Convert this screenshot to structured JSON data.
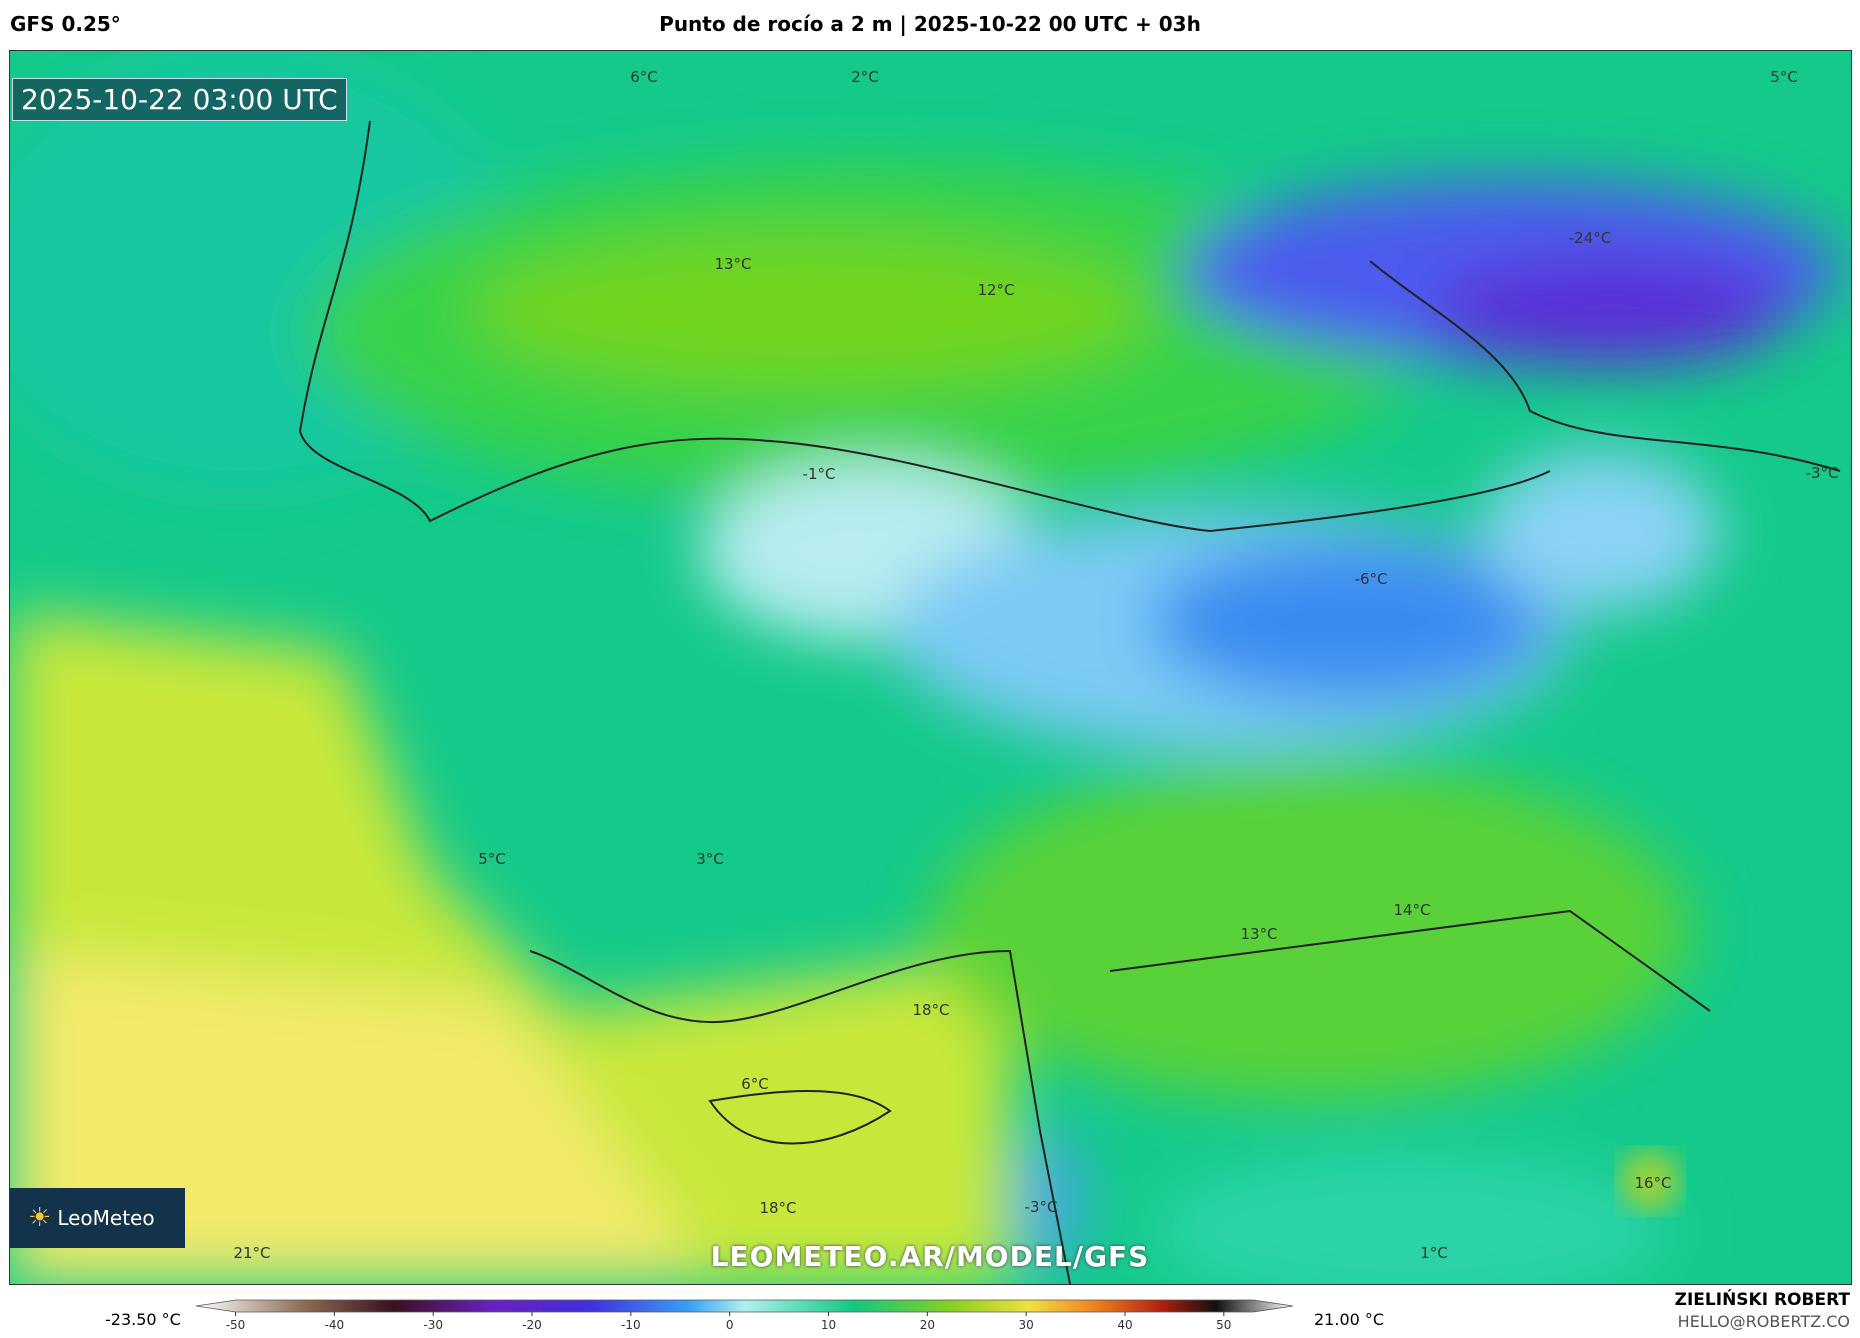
{
  "header": {
    "model": "GFS 0.25°",
    "title": "Punto de rocío a 2 m | 2025-10-22 00 UTC + 03h"
  },
  "map": {
    "timestamp": "2025-10-22 03:00 UTC",
    "watermark": "LEOMETEO.AR/MODEL/GFS",
    "logo": "LeoMeteo",
    "labels": [
      "6°C",
      "2°C",
      "5°C",
      "13°C",
      "12°C",
      "-24°C",
      "-1°C",
      "-3°C",
      "-6°C",
      "5°C",
      "3°C",
      "14°C",
      "13°C",
      "18°C",
      "6°C",
      "16°C",
      "18°C",
      "-3°C",
      "21°C",
      "1°C"
    ]
  },
  "colorbar": {
    "min_label": "-23.50 °C",
    "max_label": "21.00 °C",
    "lim": [
      -54,
      57
    ],
    "ticks": [
      -50,
      -40,
      -30,
      -20,
      -10,
      0,
      10,
      20,
      30,
      40,
      50
    ]
  },
  "footer": {
    "author": "ZIELIŃSKI ROBERT",
    "email": "HELLO@ROBERTZ.CO"
  }
}
